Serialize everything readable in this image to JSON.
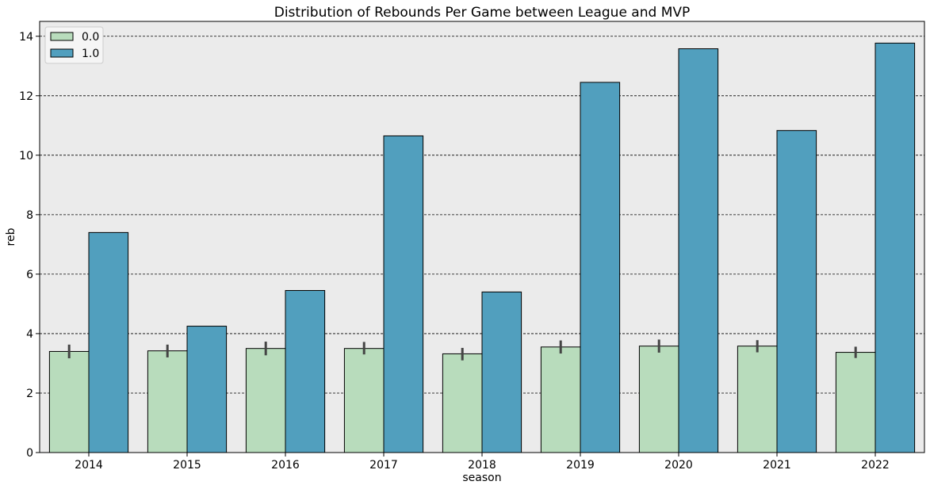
{
  "chart_data": {
    "type": "bar",
    "title": "Distribution of Rebounds Per Game between League and MVP",
    "xlabel": "season",
    "ylabel": "reb",
    "categories": [
      "2014",
      "2015",
      "2016",
      "2017",
      "2018",
      "2019",
      "2020",
      "2021",
      "2022"
    ],
    "ylim": [
      0,
      14.5
    ],
    "yticks": [
      0,
      2,
      4,
      6,
      8,
      10,
      12,
      14
    ],
    "grid": true,
    "legend_position": "top-left",
    "series": [
      {
        "name": "0.0",
        "color": "#b8dcbc",
        "values": [
          3.4,
          3.42,
          3.5,
          3.5,
          3.32,
          3.55,
          3.58,
          3.58,
          3.37
        ],
        "error_bars": [
          [
            3.17,
            3.63
          ],
          [
            3.2,
            3.63
          ],
          [
            3.27,
            3.73
          ],
          [
            3.3,
            3.72
          ],
          [
            3.1,
            3.52
          ],
          [
            3.33,
            3.77
          ],
          [
            3.36,
            3.8
          ],
          [
            3.37,
            3.78
          ],
          [
            3.18,
            3.56
          ]
        ]
      },
      {
        "name": "1.0",
        "color": "#519fbe",
        "values": [
          7.4,
          4.25,
          5.45,
          10.65,
          5.4,
          12.45,
          13.58,
          10.83,
          13.77
        ]
      }
    ]
  }
}
